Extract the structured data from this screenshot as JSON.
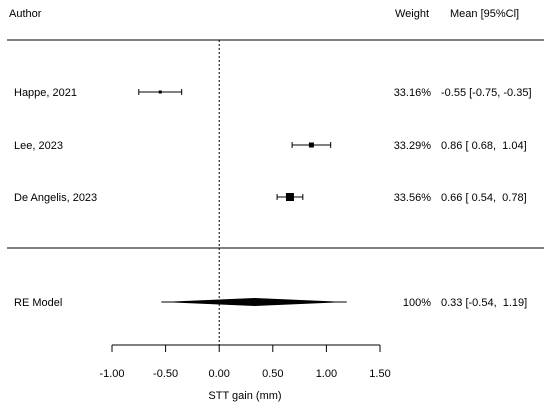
{
  "chart_data": {
    "type": "forest",
    "headers": {
      "author": "Author",
      "weight": "Weight",
      "ci": "Mean [95%Cl]"
    },
    "studies": [
      {
        "author": "Happe, 2021",
        "mean": -0.55,
        "lower": -0.75,
        "upper": -0.35,
        "weight": "33.16%",
        "ci_text": "-0.55 [-0.75, -0.35]"
      },
      {
        "author": "Lee, 2023",
        "mean": 0.86,
        "lower": 0.68,
        "upper": 1.04,
        "weight": "33.29%",
        "ci_text": "0.86 [ 0.68,  1.04]"
      },
      {
        "author": "De Angelis, 2023",
        "mean": 0.66,
        "lower": 0.54,
        "upper": 0.78,
        "weight": "33.56%",
        "ci_text": "0.66 [ 0.54,  0.78]"
      }
    ],
    "model": {
      "label": "RE Model",
      "mean": 0.33,
      "lower": -0.54,
      "upper": 1.19,
      "weight": "100%",
      "ci_text": "0.33 [-0.54,  1.19]"
    },
    "prediction_interval": {
      "lower": -0.54,
      "upper": 1.19
    },
    "xlabel": "STT gain (mm)",
    "xlim": [
      -1.0,
      1.5
    ],
    "ticks": [
      -1.0,
      -0.5,
      0.0,
      0.5,
      1.0,
      1.5
    ],
    "tick_labels": [
      "-1.00",
      "-0.50",
      "0.00",
      "0.50",
      "1.00",
      "1.50"
    ],
    "reference_line": 0
  }
}
